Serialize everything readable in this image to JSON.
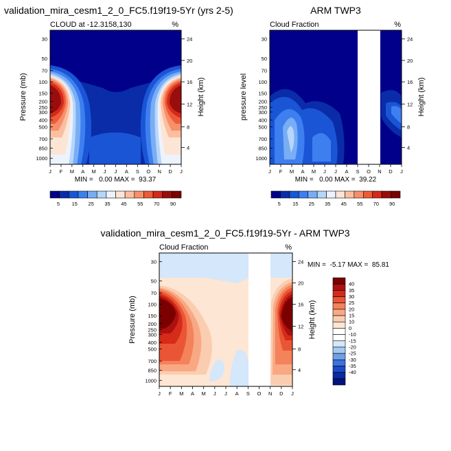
{
  "chart_data": [
    {
      "type": "heatmap",
      "title": "validation_mira_cesm1_2_0_FC5.f19f19-5Yr (yrs 2-5)",
      "subtitle_left": "CLOUD at -12.3158,130",
      "subtitle_right": "%",
      "ylabel": "Pressure (mb)",
      "ylabel_right": "Height (km)",
      "x_ticks": [
        "J",
        "F",
        "M",
        "A",
        "M",
        "J",
        "J",
        "A",
        "S",
        "O",
        "N",
        "D",
        "J"
      ],
      "y_ticks": [
        "30",
        "50",
        "70",
        "100",
        "150",
        "200",
        "250",
        "300",
        "400",
        "500",
        "700",
        "850",
        "1000"
      ],
      "y_ticks_right": [
        "24",
        "20",
        "16",
        "12",
        "8",
        "4"
      ],
      "stats": "MIN =   0.00 MAX =  93.37",
      "colorbar_labels": [
        "5",
        "15",
        "25",
        "35",
        "45",
        "55",
        "70",
        "90"
      ]
    },
    {
      "type": "heatmap",
      "title": "ARM TWP3",
      "subtitle_left": "Cloud Fraction",
      "subtitle_right": "%",
      "ylabel": "pressure level",
      "ylabel_right": "Height (km)",
      "x_ticks": [
        "J",
        "F",
        "M",
        "A",
        "M",
        "J",
        "J",
        "A",
        "S",
        "O",
        "N",
        "D",
        "J"
      ],
      "y_ticks": [
        "30",
        "50",
        "70",
        "100",
        "150",
        "200",
        "250",
        "300",
        "400",
        "500",
        "700",
        "850",
        "1000"
      ],
      "y_ticks_right": [
        "24",
        "20",
        "16",
        "12",
        "8",
        "4"
      ],
      "stats": "MIN =   0.00 MAX =  39.22",
      "colorbar_labels": [
        "5",
        "15",
        "25",
        "35",
        "45",
        "55",
        "70",
        "90"
      ]
    },
    {
      "type": "heatmap",
      "title": "validation_mira_cesm1_2_0_FC5.f19f19-5Yr - ARM TWP3",
      "subtitle_left": "Cloud Fraction",
      "subtitle_right": "%",
      "ylabel": "Pressure (mb)",
      "ylabel_right": "Height (km)",
      "x_ticks": [
        "J",
        "F",
        "M",
        "A",
        "M",
        "J",
        "J",
        "A",
        "S",
        "O",
        "N",
        "D",
        "J"
      ],
      "y_ticks": [
        "30",
        "50",
        "70",
        "100",
        "150",
        "200",
        "250",
        "300",
        "400",
        "500",
        "700",
        "850",
        "1000"
      ],
      "y_ticks_right": [
        "24",
        "20",
        "16",
        "12",
        "8",
        "4"
      ],
      "stats": "MIN =  -5.17 MAX =  85.81",
      "colorbar_labels": [
        "40",
        "35",
        "30",
        "25",
        "20",
        "15",
        "10",
        "0",
        "-10",
        "-15",
        "-20",
        "-25",
        "-30",
        "-35",
        "-40"
      ]
    }
  ],
  "colors": {
    "seq": [
      "#00008b",
      "#0a2ca8",
      "#1a55d6",
      "#3e7ff0",
      "#79aef5",
      "#b7d6fb",
      "#ecf3fd",
      "#fde5d6",
      "#fbbfa0",
      "#f7906a",
      "#ee5a3a",
      "#d42a1a",
      "#9a0d0d",
      "#7b0000"
    ],
    "div_pos": [
      "#fde6d3",
      "#fbcdb0",
      "#f8a983",
      "#f4825b",
      "#ea5635",
      "#d52b18",
      "#ad1010",
      "#7b0000"
    ],
    "div_neg": [
      "#d4e7fb",
      "#a6c9f3",
      "#6f9fe9",
      "#3b72dd",
      "#1a4bc8",
      "#0a2aa3",
      "#02127f"
    ],
    "white": "#ffffff"
  }
}
